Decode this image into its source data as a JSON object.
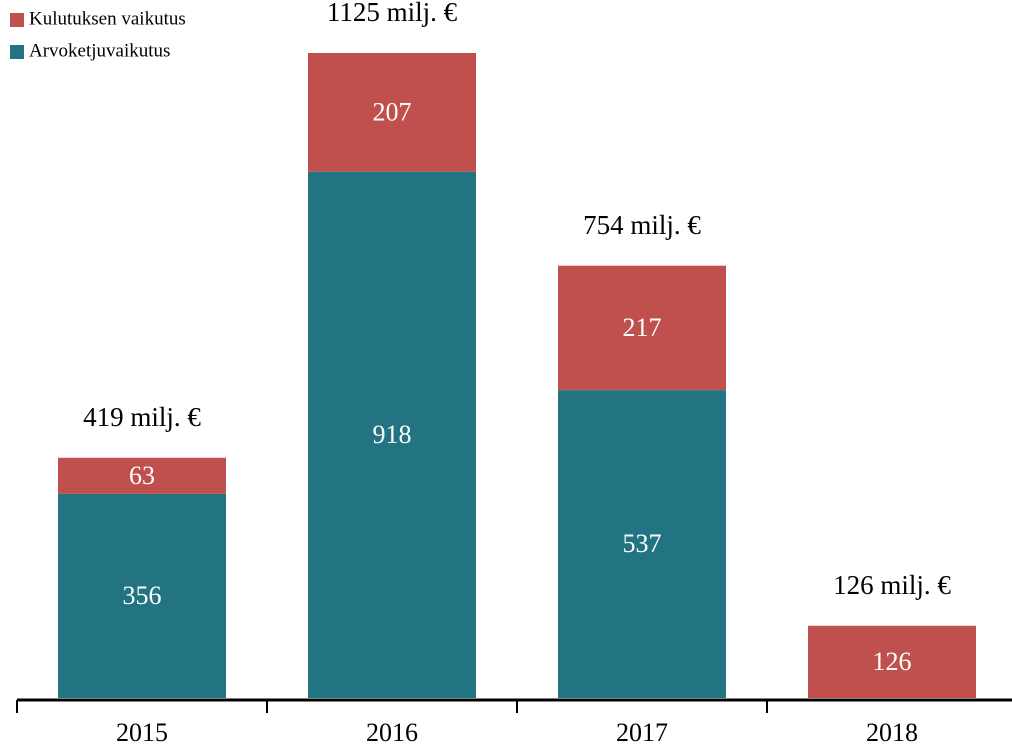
{
  "chart_data": {
    "type": "stacked_bar",
    "categories": [
      "2015",
      "2016",
      "2017",
      "2018"
    ],
    "series": [
      {
        "name": "Arvoketjuvaikutus",
        "color": "#237482",
        "values": [
          356,
          918,
          537,
          null
        ]
      },
      {
        "name": "Kulutuksen vaikutus",
        "color": "#c0504d",
        "values": [
          63,
          207,
          217,
          126
        ]
      }
    ],
    "total_labels": [
      "419 milj. €",
      "1125 milj. €",
      "754 milj. €",
      "126 milj. €"
    ],
    "ylim": [
      0,
      1125
    ],
    "legend": "top-left"
  }
}
